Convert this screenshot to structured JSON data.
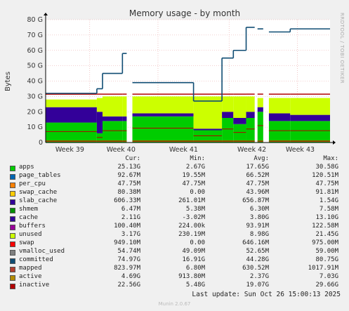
{
  "chart_data": {
    "type": "area",
    "title": "Memory usage - by month",
    "ylabel": "Bytes",
    "side_label": "RRDTOOL / TOBI OETIKER",
    "y_ticks": [
      "0",
      "10 G",
      "20 G",
      "30 G",
      "40 G",
      "50 G",
      "60 G",
      "70 G",
      "80 G"
    ],
    "ylim": [
      0,
      80
    ],
    "x_ticks": [
      "Week 39",
      "Week 40",
      "Week 41",
      "Week 42",
      "Week 43"
    ],
    "grid": true,
    "stack_order": [
      "apps",
      "page_tables",
      "per_cpu",
      "swap_cache",
      "slab_cache",
      "shmem",
      "cache",
      "buffers",
      "unused"
    ],
    "segments": [
      {
        "x0": 0.0,
        "x1": 0.18,
        "apps": 13,
        "cache": 10,
        "unused": 5,
        "committed": 32,
        "swap": 0.9
      },
      {
        "x0": 0.18,
        "x1": 0.2,
        "apps": 6,
        "cache": 14,
        "unused": 9,
        "committed": 35,
        "swap": 0.9
      },
      {
        "x0": 0.2,
        "x1": 0.27,
        "apps": 14,
        "cache": 3,
        "unused": 13,
        "committed": 45,
        "swap": 0.9
      },
      {
        "x0": 0.27,
        "x1": 0.285,
        "apps": 14,
        "cache": 3,
        "unused": 13,
        "committed": 58,
        "swap": 0.9
      },
      {
        "x0": 0.305,
        "x1": 0.52,
        "apps": 17,
        "cache": 2,
        "unused": 11,
        "committed": 39,
        "swap": 0.9
      },
      {
        "x0": 0.52,
        "x1": 0.62,
        "apps": 8,
        "cache": 1,
        "unused": 21,
        "committed": 27,
        "swap": 0.9
      },
      {
        "x0": 0.62,
        "x1": 0.66,
        "apps": 16,
        "cache": 4,
        "unused": 10,
        "committed": 55,
        "swap": 0.9
      },
      {
        "x0": 0.66,
        "x1": 0.705,
        "apps": 12,
        "cache": 4,
        "unused": 14,
        "committed": 60,
        "swap": 0.9
      },
      {
        "x0": 0.705,
        "x1": 0.735,
        "apps": 16,
        "cache": 4,
        "unused": 10,
        "committed": 75,
        "swap": 0.9
      },
      {
        "x0": 0.745,
        "x1": 0.765,
        "apps": 20,
        "cache": 3,
        "unused": 6,
        "committed": 74,
        "swap": 0.9
      },
      {
        "x0": 0.785,
        "x1": 0.86,
        "apps": 14,
        "cache": 5,
        "unused": 10,
        "committed": 72,
        "swap": 0.9
      },
      {
        "x0": 0.86,
        "x1": 1.0,
        "apps": 14,
        "cache": 4,
        "unused": 11,
        "committed": 74,
        "swap": 0.9
      }
    ],
    "total_line": 31.5,
    "legend_headers": [
      "Cur:",
      "Min:",
      "Avg:",
      "Max:"
    ],
    "series": [
      {
        "name": "apps",
        "color": "#00cc00",
        "cur": "25.13G",
        "min": "2.67G",
        "avg": "17.65G",
        "max": "30.58G"
      },
      {
        "name": "page_tables",
        "color": "#0066b3",
        "cur": "92.67M",
        "min": "19.55M",
        "avg": "66.52M",
        "max": "120.51M"
      },
      {
        "name": "per_cpu",
        "color": "#ff8000",
        "cur": "47.75M",
        "min": "47.75M",
        "avg": "47.75M",
        "max": "47.75M"
      },
      {
        "name": "swap_cache",
        "color": "#ffcc00",
        "cur": "80.38M",
        "min": "0.00",
        "avg": "43.96M",
        "max": "91.81M"
      },
      {
        "name": "slab_cache",
        "color": "#330099",
        "cur": "606.33M",
        "min": "261.01M",
        "avg": "656.87M",
        "max": "1.54G"
      },
      {
        "name": "shmem",
        "color": "#008f00",
        "cur": "6.47M",
        "min": "5.38M",
        "avg": "6.30M",
        "max": "7.58M"
      },
      {
        "name": "cache",
        "color": "#330099",
        "cur": "2.11G",
        "min": "-3.02M",
        "avg": "3.80G",
        "max": "13.10G"
      },
      {
        "name": "buffers",
        "color": "#990099",
        "cur": "100.40M",
        "min": "224.00k",
        "avg": "93.91M",
        "max": "122.58M"
      },
      {
        "name": "unused",
        "color": "#ccff00",
        "cur": "3.17G",
        "min": "230.19M",
        "avg": "8.98G",
        "max": "21.45G"
      },
      {
        "name": "swap",
        "color": "#ff0000",
        "cur": "949.10M",
        "min": "0.00",
        "avg": "646.16M",
        "max": "975.00M"
      },
      {
        "name": "vmalloc_used",
        "color": "#808080",
        "cur": "54.74M",
        "min": "49.09M",
        "avg": "52.65M",
        "max": "59.00M"
      },
      {
        "name": "committed",
        "color": "#0f4c73",
        "cur": "74.97G",
        "min": "16.91G",
        "avg": "44.28G",
        "max": "80.75G"
      },
      {
        "name": "mapped",
        "color": "#b33e2e",
        "cur": "823.97M",
        "min": "6.80M",
        "avg": "630.52M",
        "max": "1017.91M"
      },
      {
        "name": "active",
        "color": "#b38b00",
        "cur": "4.69G",
        "min": "913.80M",
        "avg": "2.37G",
        "max": "7.03G"
      },
      {
        "name": "inactive",
        "color": "#b30000",
        "cur": "22.56G",
        "min": "5.48G",
        "avg": "19.07G",
        "max": "29.66G"
      }
    ]
  },
  "footer": {
    "last_update": "Last update: Sun Oct 26 15:00:13 2025",
    "munin": "Munin 2.0.67"
  }
}
